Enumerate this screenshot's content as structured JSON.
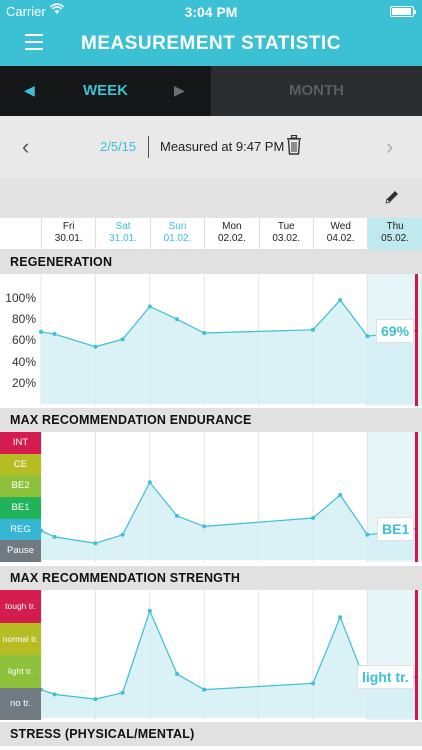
{
  "status_bar": {
    "carrier": "Carrier",
    "time": "3:04 PM"
  },
  "nav": {
    "title": "MEASUREMENT STATISTIC"
  },
  "segments": {
    "week": "WEEK",
    "month": "MONTH",
    "selected": "week"
  },
  "date_bar": {
    "date": "2/5/15",
    "measured": "Measured at  9:47 PM"
  },
  "days": [
    {
      "name": "Fri",
      "date": "30.01.",
      "weekend": false,
      "selected": false
    },
    {
      "name": "Sat",
      "date": "31.01.",
      "weekend": true,
      "selected": false
    },
    {
      "name": "Sun",
      "date": "01.02.",
      "weekend": true,
      "selected": false
    },
    {
      "name": "Mon",
      "date": "02.02.",
      "weekend": false,
      "selected": false
    },
    {
      "name": "Tue",
      "date": "03.02.",
      "weekend": false,
      "selected": false
    },
    {
      "name": "Wed",
      "date": "04.02.",
      "weekend": false,
      "selected": false
    },
    {
      "name": "Thu",
      "date": "05.02.",
      "weekend": false,
      "selected": true
    }
  ],
  "sections": {
    "regeneration": "REGENERATION",
    "endurance": "MAX RECOMMENDATION ENDURANCE",
    "strength": "MAX RECOMMENDATION STRENGTH",
    "stress": "STRESS (PHYSICAL/MENTAL)"
  },
  "colors": {
    "accent": "#3cc0d4",
    "today_line": "#d4154a"
  },
  "chart_data": [
    {
      "type": "area",
      "title": "REGENERATION",
      "y_ticks": [
        "100%",
        "80%",
        "60%",
        "40%",
        "20%"
      ],
      "ylim": [
        0,
        100
      ],
      "x": [
        0,
        0.25,
        1,
        1.5,
        2,
        2.5,
        3,
        5,
        5.5,
        6,
        6.9
      ],
      "values": [
        68,
        66,
        54,
        61,
        92,
        80,
        67,
        70,
        98,
        64,
        69
      ],
      "current_label": "69%"
    },
    {
      "type": "area",
      "title": "MAX RECOMMENDATION ENDURANCE",
      "levels": [
        {
          "label": "INT",
          "color": "#d41c4e"
        },
        {
          "label": "CE",
          "color": "#b6bd22"
        },
        {
          "label": "BE2",
          "color": "#8dc03b"
        },
        {
          "label": "BE1",
          "color": "#21b35a"
        },
        {
          "label": "REG",
          "color": "#37b6d4"
        },
        {
          "label": "Pause",
          "color": "#707a80"
        }
      ],
      "ylim": [
        0,
        6
      ],
      "x": [
        0,
        0.25,
        1,
        1.5,
        2,
        2.5,
        3,
        5,
        5.5,
        6,
        6.9
      ],
      "values": [
        1.4,
        1.1,
        0.8,
        1.2,
        3.7,
        2.1,
        1.6,
        2.0,
        3.1,
        1.2,
        1.5
      ],
      "current_label": "BE1"
    },
    {
      "type": "area",
      "title": "MAX RECOMMENDATION STRENGTH",
      "levels": [
        {
          "label": "tough tr.",
          "color": "#d41c4e"
        },
        {
          "label": "normal tr.",
          "color": "#b6bd22"
        },
        {
          "label": "light tr.",
          "color": "#8dc03b"
        },
        {
          "label": "no tr.",
          "color": "#707a80"
        }
      ],
      "ylim": [
        0,
        4
      ],
      "x": [
        0,
        0.25,
        1,
        1.5,
        2,
        2.5,
        3,
        5,
        5.5,
        6,
        6.9
      ],
      "values": [
        0.9,
        0.75,
        0.6,
        0.8,
        3.4,
        1.4,
        0.9,
        1.1,
        3.2,
        1.0,
        1.3
      ],
      "current_label": "light tr."
    }
  ]
}
